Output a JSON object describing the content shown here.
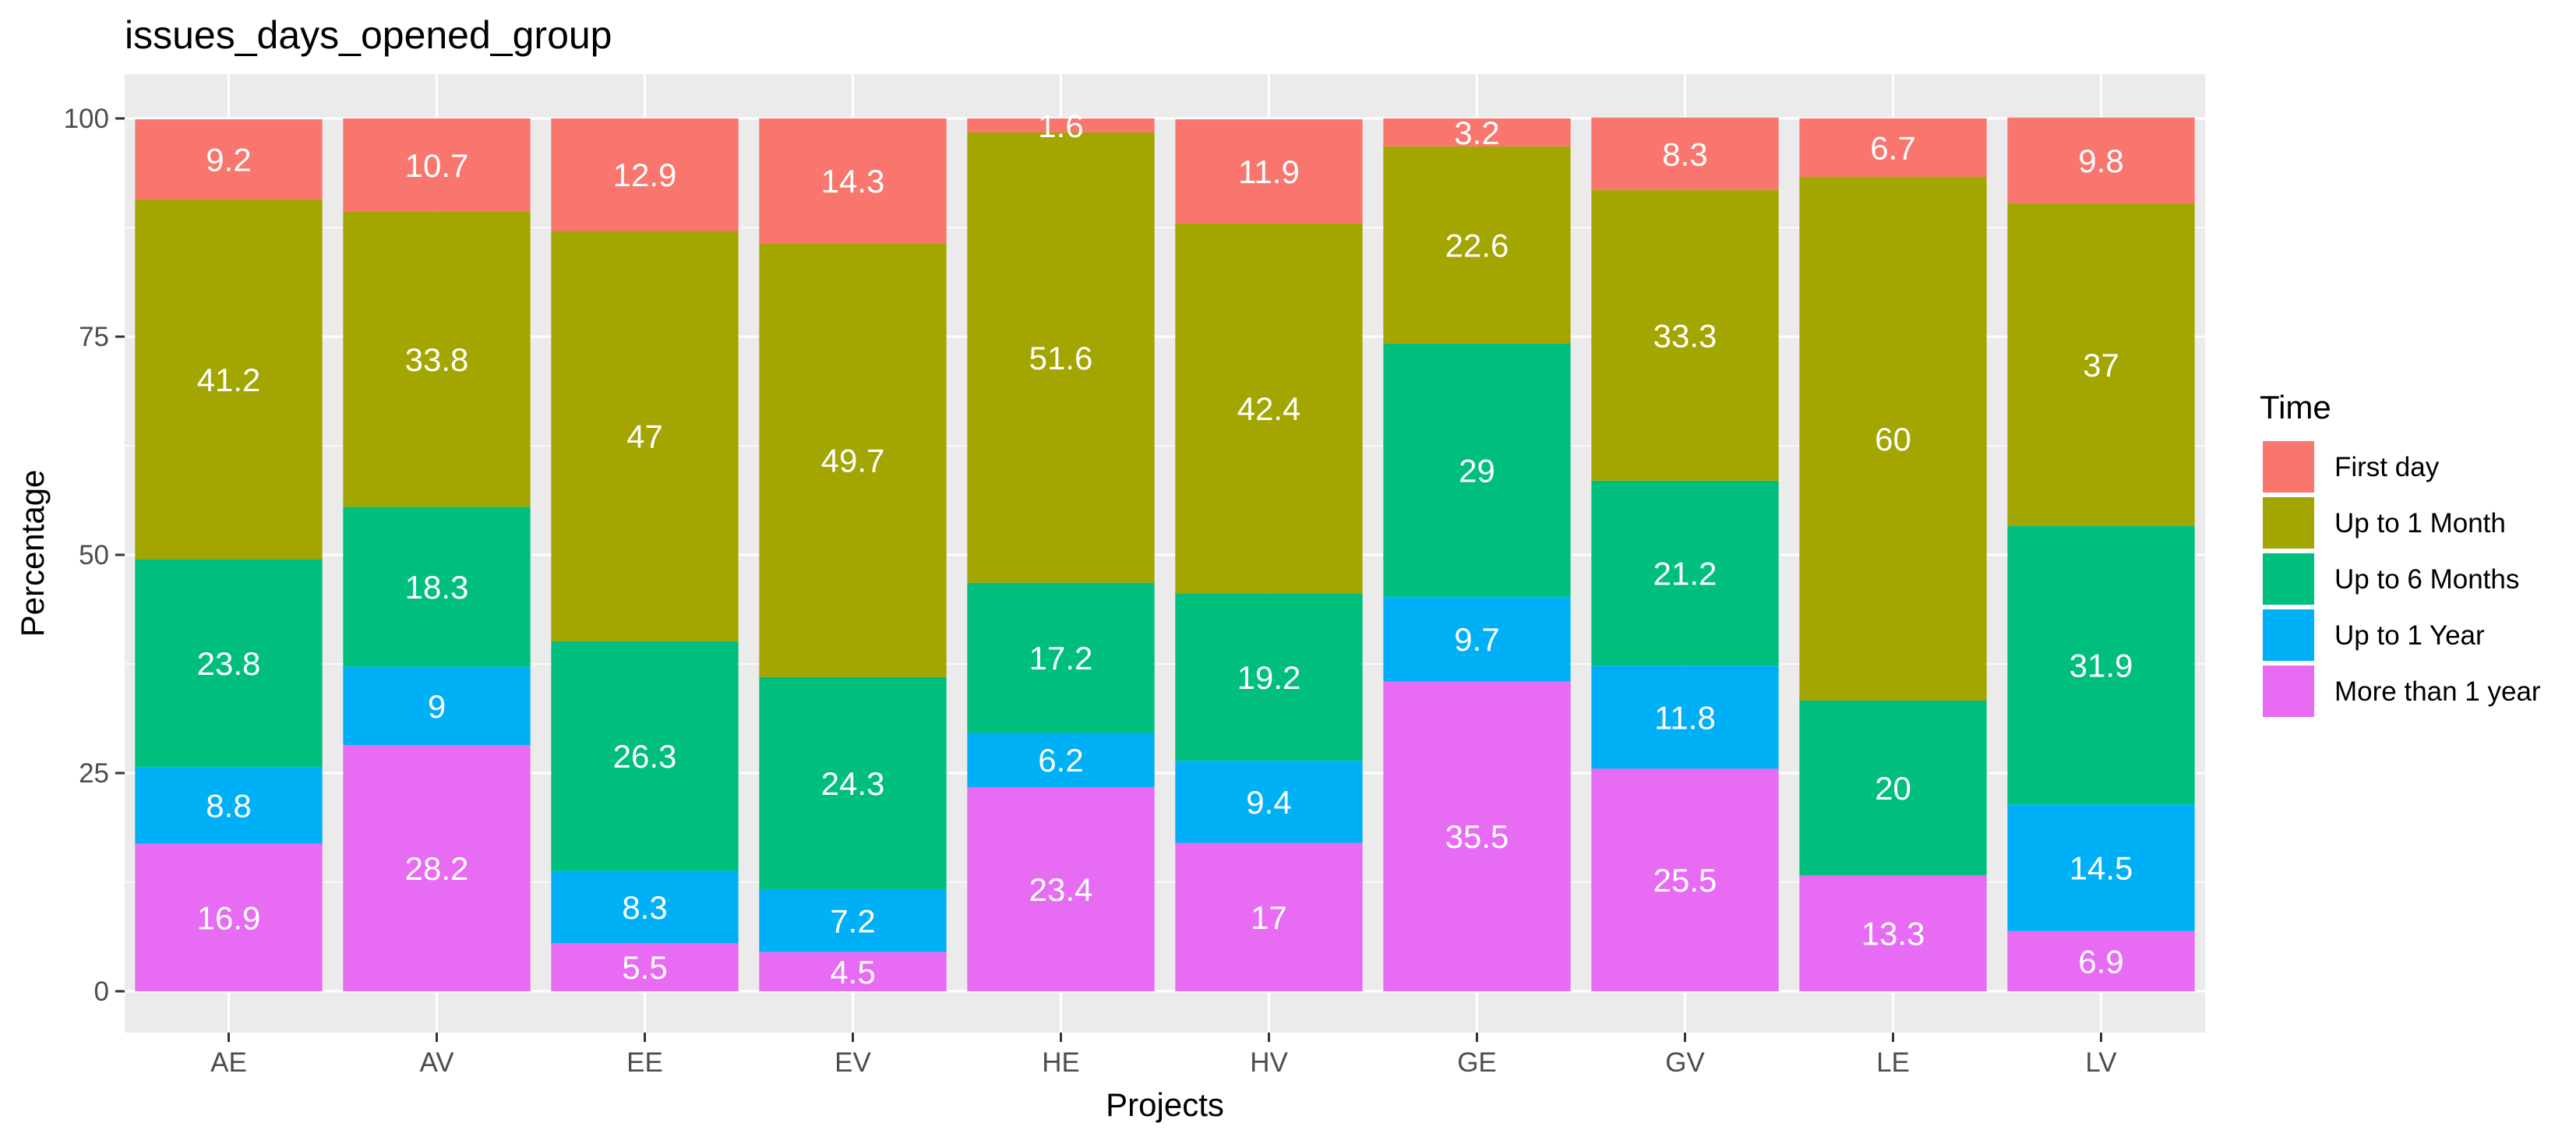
{
  "chart_data": {
    "type": "bar",
    "stacked": true,
    "title": "issues_days_opened_group",
    "xlabel": "Projects",
    "ylabel": "Percentage",
    "ylim": [
      0,
      100
    ],
    "yticks": [
      0,
      25,
      50,
      75,
      100
    ],
    "grid": true,
    "legend_position": "right",
    "legend_title": "Time",
    "categories": [
      "AE",
      "AV",
      "EE",
      "EV",
      "HE",
      "HV",
      "GE",
      "GV",
      "LE",
      "LV"
    ],
    "series": [
      {
        "name": "First day",
        "color": "#F8766D",
        "values": [
          9.2,
          10.7,
          12.9,
          14.3,
          1.6,
          11.9,
          3.2,
          8.3,
          6.7,
          9.8
        ]
      },
      {
        "name": "Up to 1 Month",
        "color": "#A3A500",
        "values": [
          41.2,
          33.8,
          47,
          49.7,
          51.6,
          42.4,
          22.6,
          33.3,
          60,
          37
        ]
      },
      {
        "name": "Up to 6 Months",
        "color": "#00BF7D",
        "values": [
          23.8,
          18.3,
          26.3,
          24.3,
          17.2,
          19.2,
          29,
          21.2,
          20,
          31.9
        ]
      },
      {
        "name": "Up to 1 Year",
        "color": "#00B0F6",
        "values": [
          8.8,
          9,
          8.3,
          7.2,
          6.2,
          9.4,
          9.7,
          11.8,
          0,
          14.5
        ]
      },
      {
        "name": "More than 1 year",
        "color": "#E76BF3",
        "values": [
          16.9,
          28.2,
          5.5,
          4.5,
          23.4,
          17,
          35.5,
          25.5,
          13.3,
          6.9
        ]
      }
    ]
  }
}
